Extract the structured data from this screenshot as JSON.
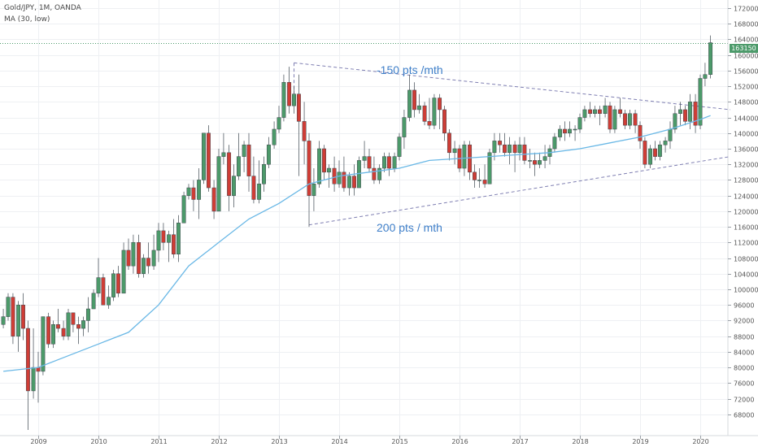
{
  "header": {
    "symbol": "Gold/JPY, 1M, OANDA",
    "indicator": "MA (30, low)"
  },
  "last_price_label": "163150",
  "colors": {
    "up": "#4c9a6a",
    "down": "#cf3d36",
    "ma": "#6ab8e6",
    "trendline": "#7f7fb2",
    "annotation": "#3f7fc9",
    "grid": "#eef0f3",
    "axis_text": "#555555"
  },
  "annotations": {
    "upper": "-150 pts /mth",
    "lower": "200 pts / mth"
  },
  "chart_data": {
    "type": "candlestick",
    "instrument": "Gold/JPY",
    "interval": "1M",
    "source": "OANDA",
    "ylim": [
      64000,
      176000
    ],
    "xlim": [
      2008.4,
      2020.5
    ],
    "y_ticks": [
      68000,
      72000,
      76000,
      80000,
      84000,
      88000,
      92000,
      96000,
      100000,
      104000,
      108000,
      112000,
      116000,
      120000,
      124000,
      128000,
      132000,
      136000,
      140000,
      144000,
      148000,
      152000,
      156000,
      160000,
      164000,
      168000,
      172000
    ],
    "x_ticks": [
      2009,
      2010,
      2011,
      2012,
      2013,
      2014,
      2015,
      2016,
      2017,
      2018,
      2019,
      2020
    ],
    "last_price": 163150,
    "candles": [
      [
        2008.42,
        91000,
        95000,
        90000,
        93000
      ],
      [
        2008.5,
        93000,
        99000,
        92000,
        98000
      ],
      [
        2008.58,
        98000,
        99000,
        86000,
        88000
      ],
      [
        2008.67,
        88000,
        97000,
        84000,
        96000
      ],
      [
        2008.75,
        96000,
        99000,
        87000,
        90000
      ],
      [
        2008.83,
        90000,
        92000,
        64000,
        74000
      ],
      [
        2008.92,
        74000,
        90000,
        72000,
        80000
      ],
      [
        2009.0,
        80000,
        84000,
        71000,
        79000
      ],
      [
        2009.08,
        79000,
        93000,
        78000,
        93000
      ],
      [
        2009.17,
        93000,
        94000,
        85000,
        86000
      ],
      [
        2009.25,
        86000,
        92000,
        85000,
        91000
      ],
      [
        2009.33,
        91000,
        95000,
        89000,
        90000
      ],
      [
        2009.42,
        90000,
        92000,
        87000,
        88000
      ],
      [
        2009.5,
        88000,
        95000,
        87000,
        94000
      ],
      [
        2009.58,
        94000,
        94000,
        89000,
        91000
      ],
      [
        2009.67,
        91000,
        93000,
        86000,
        90000
      ],
      [
        2009.75,
        90000,
        93000,
        88000,
        92000
      ],
      [
        2009.83,
        92000,
        98000,
        89000,
        95000
      ],
      [
        2009.92,
        95000,
        100000,
        95000,
        99000
      ],
      [
        2010.0,
        99000,
        108000,
        98000,
        103000
      ],
      [
        2010.08,
        103000,
        104000,
        96000,
        96000
      ],
      [
        2010.17,
        96000,
        101000,
        95000,
        98000
      ],
      [
        2010.25,
        98000,
        105000,
        97000,
        104000
      ],
      [
        2010.33,
        104000,
        106000,
        98000,
        99000
      ],
      [
        2010.42,
        99000,
        112000,
        99000,
        110000
      ],
      [
        2010.5,
        110000,
        113000,
        105000,
        106000
      ],
      [
        2010.58,
        106000,
        114000,
        104000,
        112000
      ],
      [
        2010.67,
        112000,
        114000,
        103000,
        104000
      ],
      [
        2010.75,
        104000,
        109000,
        103000,
        108000
      ],
      [
        2010.83,
        108000,
        112000,
        104000,
        106000
      ],
      [
        2010.92,
        106000,
        114000,
        105000,
        110000
      ],
      [
        2011.0,
        110000,
        117000,
        107000,
        115000
      ],
      [
        2011.08,
        115000,
        117000,
        110000,
        112000
      ],
      [
        2011.17,
        112000,
        115000,
        107000,
        114000
      ],
      [
        2011.25,
        114000,
        118000,
        108000,
        109000
      ],
      [
        2011.33,
        109000,
        119000,
        107000,
        117000
      ],
      [
        2011.42,
        117000,
        125000,
        117000,
        124000
      ],
      [
        2011.5,
        124000,
        127000,
        123000,
        126000
      ],
      [
        2011.58,
        126000,
        128000,
        120000,
        123000
      ],
      [
        2011.67,
        123000,
        131000,
        118000,
        128000
      ],
      [
        2011.75,
        128000,
        140000,
        127000,
        140000
      ],
      [
        2011.83,
        140000,
        142000,
        125000,
        126000
      ],
      [
        2011.92,
        126000,
        128000,
        118000,
        120000
      ],
      [
        2012.0,
        120000,
        136000,
        120000,
        134000
      ],
      [
        2012.08,
        134000,
        140000,
        132000,
        135000
      ],
      [
        2012.17,
        135000,
        137000,
        120000,
        124000
      ],
      [
        2012.25,
        124000,
        132000,
        121000,
        129000
      ],
      [
        2012.33,
        129000,
        140000,
        128000,
        134000
      ],
      [
        2012.42,
        134000,
        138000,
        130000,
        137000
      ],
      [
        2012.5,
        137000,
        140000,
        125000,
        129000
      ],
      [
        2012.58,
        129000,
        134000,
        122000,
        123000
      ],
      [
        2012.67,
        123000,
        133000,
        122000,
        127000
      ],
      [
        2012.75,
        127000,
        134000,
        125000,
        132000
      ],
      [
        2012.83,
        132000,
        139000,
        131000,
        137000
      ],
      [
        2012.92,
        137000,
        143000,
        136000,
        141000
      ],
      [
        2013.0,
        141000,
        147000,
        140000,
        144000
      ],
      [
        2013.08,
        144000,
        155000,
        143000,
        153000
      ],
      [
        2013.17,
        153000,
        157000,
        145000,
        147000
      ],
      [
        2013.25,
        147000,
        152000,
        145000,
        150000
      ],
      [
        2013.33,
        150000,
        155000,
        129000,
        143000
      ],
      [
        2013.42,
        143000,
        148000,
        132000,
        138000
      ],
      [
        2013.5,
        138000,
        140000,
        116000,
        124000
      ],
      [
        2013.58,
        124000,
        131000,
        120000,
        127000
      ],
      [
        2013.67,
        127000,
        138000,
        126000,
        136000
      ],
      [
        2013.75,
        136000,
        137000,
        128000,
        130000
      ],
      [
        2013.83,
        130000,
        132000,
        126000,
        131000
      ],
      [
        2013.92,
        131000,
        134000,
        125000,
        127000
      ],
      [
        2014.0,
        127000,
        133000,
        126000,
        130000
      ],
      [
        2014.08,
        130000,
        134000,
        125000,
        126000
      ],
      [
        2014.17,
        126000,
        130000,
        124000,
        129000
      ],
      [
        2014.25,
        129000,
        132000,
        124000,
        126000
      ],
      [
        2014.33,
        126000,
        134000,
        126000,
        133000
      ],
      [
        2014.42,
        133000,
        138000,
        131000,
        134000
      ],
      [
        2014.5,
        134000,
        136000,
        130000,
        131000
      ],
      [
        2014.58,
        131000,
        134000,
        127000,
        128000
      ],
      [
        2014.67,
        128000,
        132000,
        127000,
        131000
      ],
      [
        2014.75,
        131000,
        135000,
        130000,
        134000
      ],
      [
        2014.83,
        134000,
        135000,
        129000,
        131000
      ],
      [
        2014.92,
        131000,
        135000,
        130000,
        134000
      ],
      [
        2015.0,
        134000,
        140000,
        133000,
        139000
      ],
      [
        2015.08,
        139000,
        146000,
        136000,
        144000
      ],
      [
        2015.17,
        144000,
        155000,
        143000,
        151000
      ],
      [
        2015.25,
        151000,
        153000,
        144000,
        146000
      ],
      [
        2015.33,
        146000,
        150000,
        145000,
        147000
      ],
      [
        2015.42,
        147000,
        148000,
        142000,
        143000
      ],
      [
        2015.5,
        143000,
        149000,
        141000,
        142000
      ],
      [
        2015.58,
        142000,
        150000,
        141000,
        149000
      ],
      [
        2015.67,
        149000,
        150000,
        141000,
        146000
      ],
      [
        2015.75,
        146000,
        147000,
        138000,
        140000
      ],
      [
        2015.83,
        140000,
        141000,
        133000,
        135000
      ],
      [
        2015.92,
        135000,
        138000,
        132000,
        136000
      ],
      [
        2016.0,
        136000,
        137000,
        130000,
        131000
      ],
      [
        2016.08,
        131000,
        138000,
        129000,
        137000
      ],
      [
        2016.17,
        137000,
        138000,
        128000,
        130000
      ],
      [
        2016.25,
        130000,
        132000,
        126000,
        128000
      ],
      [
        2016.33,
        128000,
        131000,
        126000,
        128000
      ],
      [
        2016.42,
        128000,
        132000,
        126000,
        127000
      ],
      [
        2016.5,
        127000,
        136000,
        127000,
        135000
      ],
      [
        2016.58,
        135000,
        140000,
        133000,
        138000
      ],
      [
        2016.67,
        138000,
        140000,
        135000,
        137000
      ],
      [
        2016.75,
        137000,
        140000,
        134000,
        135000
      ],
      [
        2016.83,
        135000,
        139000,
        132000,
        137000
      ],
      [
        2016.92,
        137000,
        138000,
        130000,
        135000
      ],
      [
        2017.0,
        135000,
        139000,
        133000,
        137000
      ],
      [
        2017.08,
        137000,
        139000,
        132000,
        133000
      ],
      [
        2017.17,
        133000,
        136000,
        131000,
        133000
      ],
      [
        2017.25,
        133000,
        135000,
        129000,
        132000
      ],
      [
        2017.33,
        132000,
        135000,
        131000,
        133000
      ],
      [
        2017.42,
        133000,
        137000,
        131000,
        134000
      ],
      [
        2017.5,
        134000,
        137000,
        132000,
        136000
      ],
      [
        2017.58,
        136000,
        140000,
        135000,
        139000
      ],
      [
        2017.67,
        139000,
        142000,
        138000,
        141000
      ],
      [
        2017.75,
        141000,
        143000,
        138000,
        140000
      ],
      [
        2017.83,
        140000,
        143000,
        139000,
        141000
      ],
      [
        2017.92,
        141000,
        142000,
        138000,
        141000
      ],
      [
        2018.0,
        141000,
        145000,
        140000,
        144000
      ],
      [
        2018.08,
        144000,
        147000,
        143000,
        146000
      ],
      [
        2018.17,
        146000,
        148000,
        144000,
        145000
      ],
      [
        2018.25,
        145000,
        147000,
        144000,
        146000
      ],
      [
        2018.33,
        146000,
        147000,
        142000,
        145000
      ],
      [
        2018.42,
        145000,
        149000,
        144000,
        147000
      ],
      [
        2018.5,
        147000,
        148000,
        140000,
        141000
      ],
      [
        2018.58,
        141000,
        147000,
        140000,
        146000
      ],
      [
        2018.67,
        146000,
        149000,
        144000,
        145000
      ],
      [
        2018.75,
        145000,
        146000,
        141000,
        142000
      ],
      [
        2018.83,
        142000,
        146000,
        141000,
        145000
      ],
      [
        2018.92,
        145000,
        146000,
        140000,
        142000
      ],
      [
        2019.0,
        142000,
        143000,
        136000,
        138000
      ],
      [
        2019.08,
        138000,
        139000,
        131000,
        132000
      ],
      [
        2019.17,
        132000,
        137000,
        131000,
        136000
      ],
      [
        2019.25,
        136000,
        138000,
        133000,
        134000
      ],
      [
        2019.33,
        134000,
        138000,
        133000,
        137000
      ],
      [
        2019.42,
        137000,
        139000,
        135000,
        138000
      ],
      [
        2019.5,
        138000,
        143000,
        136000,
        141000
      ],
      [
        2019.58,
        141000,
        147000,
        140000,
        145000
      ],
      [
        2019.67,
        145000,
        148000,
        142000,
        146000
      ],
      [
        2019.75,
        146000,
        147000,
        142000,
        143000
      ],
      [
        2019.83,
        143000,
        150000,
        141000,
        148000
      ],
      [
        2019.92,
        148000,
        150000,
        140000,
        142000
      ],
      [
        2020.0,
        142000,
        155000,
        141000,
        154000
      ],
      [
        2020.08,
        154000,
        158000,
        152000,
        155000
      ],
      [
        2020.17,
        155000,
        165000,
        154000,
        163150
      ]
    ],
    "ma_line": {
      "name": "MA (30, low)",
      "points": [
        [
          2008.42,
          79000
        ],
        [
          2009.0,
          80000
        ],
        [
          2009.5,
          83000
        ],
        [
          2010.0,
          86000
        ],
        [
          2010.5,
          89000
        ],
        [
          2011.0,
          96000
        ],
        [
          2011.5,
          106000
        ],
        [
          2012.0,
          112000
        ],
        [
          2012.5,
          118000
        ],
        [
          2013.0,
          122000
        ],
        [
          2013.5,
          127000
        ],
        [
          2014.0,
          129000
        ],
        [
          2014.5,
          130000
        ],
        [
          2015.0,
          131000
        ],
        [
          2015.5,
          133000
        ],
        [
          2016.0,
          133500
        ],
        [
          2016.5,
          134000
        ],
        [
          2017.0,
          134500
        ],
        [
          2017.5,
          135000
        ],
        [
          2018.0,
          136000
        ],
        [
          2018.5,
          137500
        ],
        [
          2019.0,
          139000
        ],
        [
          2019.5,
          141000
        ],
        [
          2020.0,
          143500
        ],
        [
          2020.17,
          144500
        ]
      ]
    },
    "trendlines": [
      {
        "name": "upper",
        "from": [
          2013.25,
          158000
        ],
        "to": [
          2020.5,
          146000
        ]
      },
      {
        "name": "lower",
        "from": [
          2013.5,
          116500
        ],
        "to": [
          2020.5,
          134000
        ]
      }
    ]
  }
}
